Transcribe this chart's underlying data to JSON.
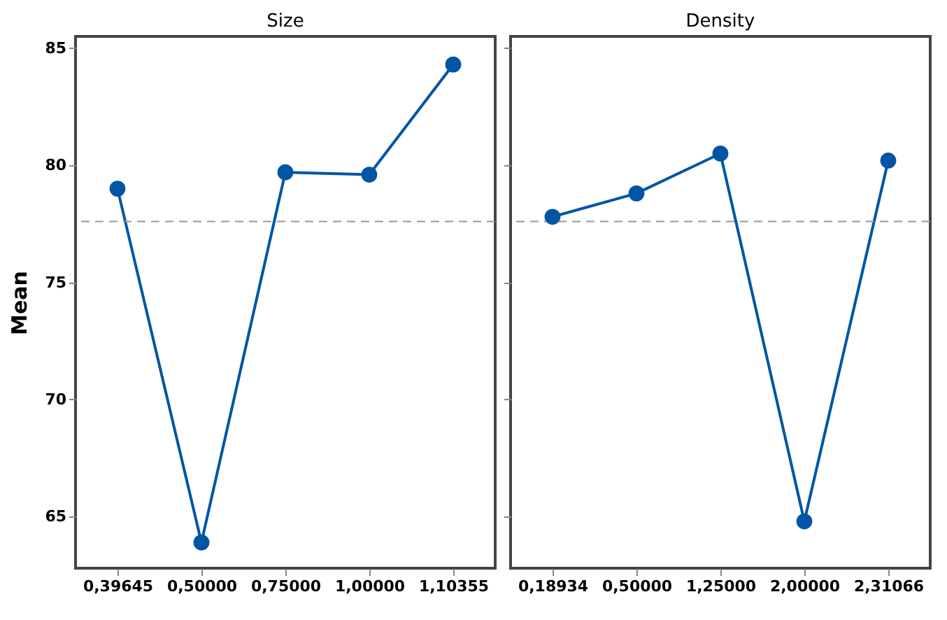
{
  "chart_data": [
    {
      "type": "line",
      "title": "Size",
      "ylabel": "Mean",
      "categories": [
        "0,39645",
        "0,50000",
        "0,75000",
        "1,00000",
        "1,10355"
      ],
      "series": [
        {
          "color": "#0055a5",
          "values": [
            79.0,
            63.9,
            79.7,
            79.6,
            84.3
          ]
        }
      ],
      "ylim": [
        62.8,
        85.5
      ],
      "yticks": [
        65,
        70,
        75,
        80,
        85
      ],
      "grid": false,
      "marker": "circle",
      "line_style": "solid",
      "ref_lines": [
        {
          "axis": "y",
          "value": 77.6,
          "color": "#999999",
          "line_style": "dashed"
        }
      ]
    },
    {
      "type": "line",
      "title": "Density",
      "categories": [
        "0,18934",
        "0,50000",
        "1,25000",
        "2,00000",
        "2,31066"
      ],
      "series": [
        {
          "color": "#0055a5",
          "values": [
            77.8,
            78.8,
            80.5,
            64.8,
            80.2
          ]
        }
      ],
      "ylim": [
        62.8,
        85.5
      ],
      "yticks": [
        65,
        70,
        75,
        80,
        85
      ],
      "grid": false,
      "marker": "circle",
      "line_style": "solid",
      "tick_labels": "x",
      "ref_lines": [
        {
          "axis": "y",
          "value": 77.6,
          "color": "#999999",
          "line_style": "dashed"
        }
      ]
    }
  ]
}
